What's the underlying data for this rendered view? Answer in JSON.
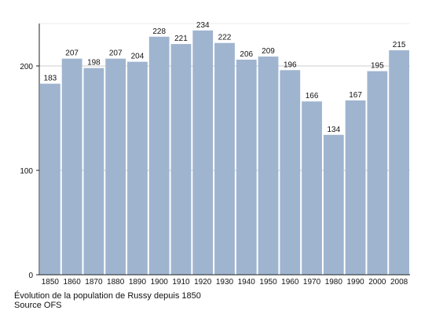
{
  "chart_data": {
    "type": "bar",
    "categories": [
      "1850",
      "1860",
      "1870",
      "1880",
      "1890",
      "1900",
      "1910",
      "1920",
      "1930",
      "1940",
      "1950",
      "1960",
      "1970",
      "1980",
      "1990",
      "2000",
      "2008"
    ],
    "values": [
      183,
      207,
      198,
      207,
      204,
      228,
      221,
      234,
      222,
      206,
      209,
      196,
      166,
      134,
      167,
      195,
      215
    ],
    "y_ticks": [
      0,
      100,
      200
    ],
    "ylim": [
      0,
      250
    ],
    "grid": true,
    "bar_color": "#9fb4cf",
    "title": "",
    "xlabel": "",
    "ylabel": ""
  },
  "caption": {
    "line1": "Évolution de la population de Russy depuis 1850",
    "line2": "Source OFS"
  }
}
